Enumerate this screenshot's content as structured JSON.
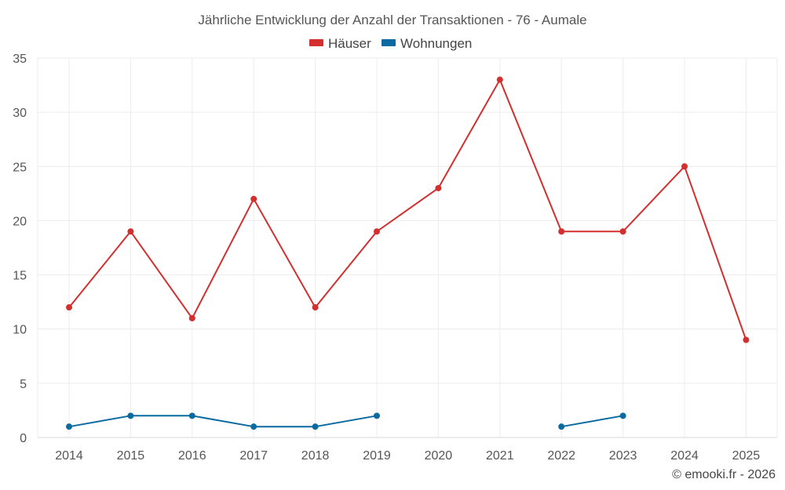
{
  "chart_data": {
    "type": "line",
    "title": "Jährliche Entwicklung der Anzahl der Transaktionen - 76 - Aumale",
    "categories": [
      "2014",
      "2015",
      "2016",
      "2017",
      "2018",
      "2019",
      "2020",
      "2021",
      "2022",
      "2023",
      "2024",
      "2025"
    ],
    "ylim": [
      0,
      35
    ],
    "yticks": [
      0,
      5,
      10,
      15,
      20,
      25,
      30,
      35
    ],
    "grid": true,
    "legend_position": "top-center",
    "series": [
      {
        "name": "Häuser",
        "color": "#d32f2f",
        "values": [
          12,
          19,
          11,
          22,
          12,
          19,
          23,
          33,
          19,
          19,
          25,
          9
        ]
      },
      {
        "name": "Wohnungen",
        "color": "#0b6aa0",
        "values": [
          1,
          2,
          2,
          1,
          1,
          2,
          null,
          null,
          1,
          2,
          null,
          null
        ]
      }
    ]
  },
  "footer": {
    "credit": "© emooki.fr - 2026"
  }
}
